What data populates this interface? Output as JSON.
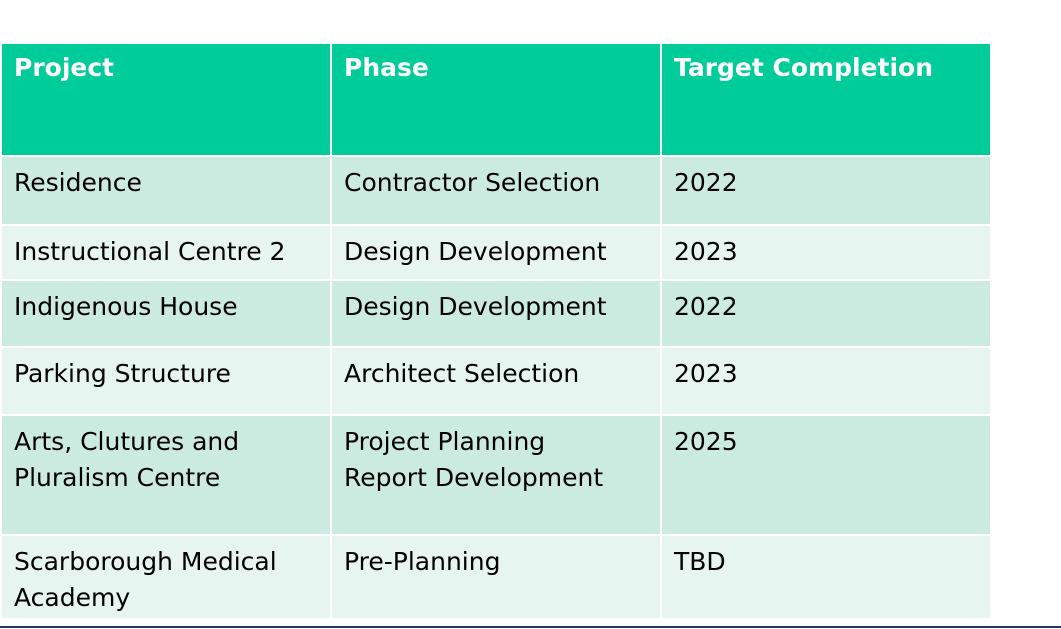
{
  "table": {
    "header": [
      "Project",
      "Phase",
      "Target Completion"
    ],
    "rows": [
      [
        "Residence",
        "Contractor Selection",
        "2022"
      ],
      [
        "Instructional Centre 2",
        "Design Development",
        "2023"
      ],
      [
        "Indigenous House",
        "Design Development",
        "2022"
      ],
      [
        "Parking Structure",
        "Architect Selection",
        "2023"
      ],
      [
        "Arts, Clutures and Pluralism Centre",
        "Project Planning Report Development",
        "2025"
      ],
      [
        "Scarborough Medical Academy",
        "Pre-Planning",
        "TBD"
      ]
    ]
  }
}
